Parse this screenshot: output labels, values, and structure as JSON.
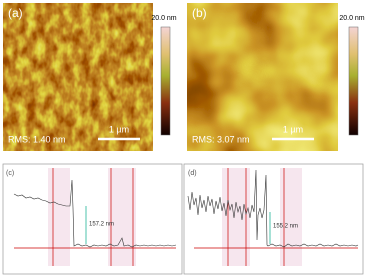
{
  "panels": [
    {
      "label": "(a)",
      "rms": "RMS: 1.40 nm",
      "scale_bar": "1 µm",
      "colorbar_max": "20.0 nm"
    },
    {
      "label": "(b)",
      "rms": "RMS: 3.07 nm",
      "scale_bar": "1 µm",
      "colorbar_max": "20.0 nm"
    }
  ],
  "profiles": [
    {
      "label": "(c)",
      "annotation": "157.2 nm"
    },
    {
      "label": "(d)",
      "annotation": "155.2 nm"
    }
  ]
}
